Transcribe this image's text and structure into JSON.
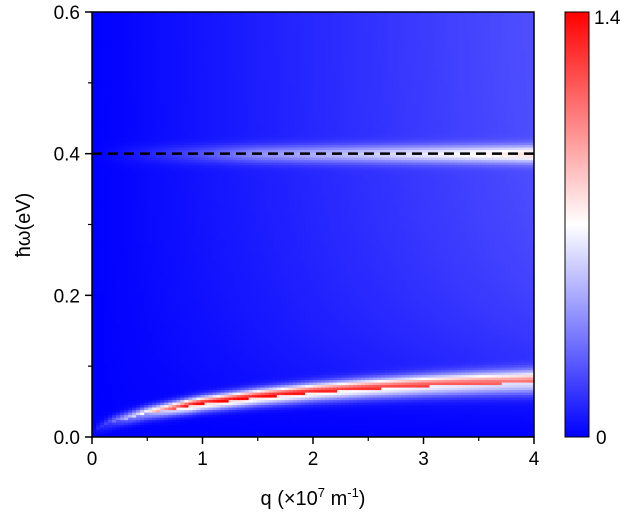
{
  "chart_data": {
    "type": "heatmap",
    "xlabel": "q (×10",
    "xlabel_sup": "7",
    "xlabel_mid": " m",
    "xlabel_sup2": "-1",
    "xlabel_end": ")",
    "ylabel": "ħω(eV)",
    "xlim": [
      0,
      4
    ],
    "ylim": [
      0,
      0.6
    ],
    "x_ticks": [
      0,
      1,
      2,
      3,
      4
    ],
    "x_tick_labels": [
      "0",
      "1",
      "2",
      "3",
      "4"
    ],
    "y_ticks": [
      0.0,
      0.2,
      0.4,
      0.6
    ],
    "y_tick_labels": [
      "0.0",
      "0.2",
      "0.4",
      "0.6"
    ],
    "colorbar": {
      "min": 0,
      "max": 1.4,
      "min_label": "0",
      "max_label": "1.4",
      "colors": [
        "#0000ff",
        "#ffffff",
        "#ff0000"
      ]
    },
    "annotations": [
      {
        "type": "horizontal-dashed-line",
        "y": 0.4,
        "color": "#000000"
      }
    ],
    "plasmon_branch": {
      "x": [
        0.05,
        0.2,
        0.5,
        1.0,
        1.5,
        2.0,
        2.5,
        3.0,
        3.5,
        4.0
      ],
      "y": [
        0.012,
        0.022,
        0.034,
        0.047,
        0.056,
        0.063,
        0.068,
        0.072,
        0.075,
        0.077
      ],
      "peak_value": 1.4
    },
    "secondary_band": {
      "y": 0.4,
      "value": 0.7
    }
  }
}
